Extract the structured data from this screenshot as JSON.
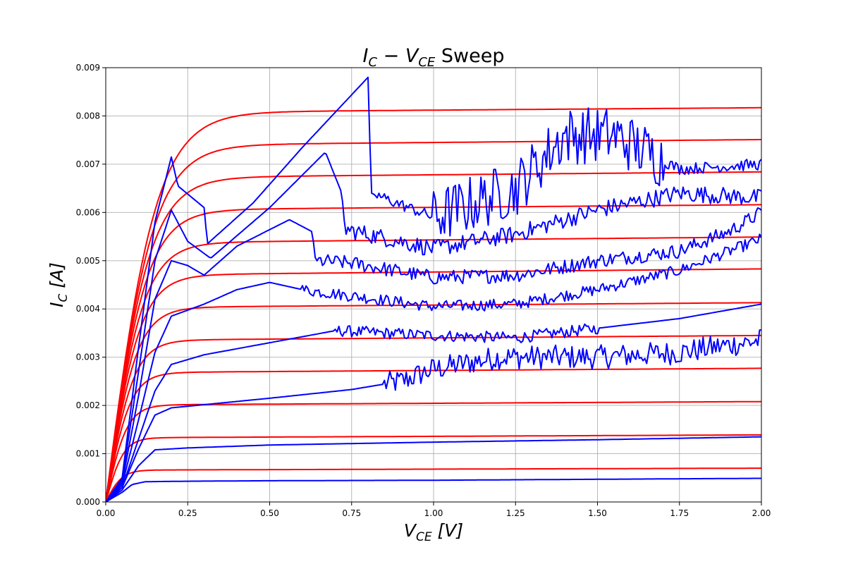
{
  "chart_data": {
    "type": "line",
    "title": {
      "main": "I",
      "main_sub": "C",
      "mid": " − V",
      "mid_sub": "CE",
      "tail": " Sweep"
    },
    "xlabel": {
      "main": "V",
      "sub": "CE",
      "unit": " [V]"
    },
    "ylabel": {
      "main": "I",
      "sub": "C",
      "unit": " [A]"
    },
    "xlim": [
      0,
      2.0
    ],
    "ylim": [
      0,
      0.009
    ],
    "x_ticks": [
      "0.00",
      "0.25",
      "0.50",
      "0.75",
      "1.00",
      "1.25",
      "1.50",
      "1.75",
      "2.00"
    ],
    "y_ticks": [
      "0.000",
      "0.001",
      "0.002",
      "0.003",
      "0.004",
      "0.005",
      "0.006",
      "0.007",
      "0.008",
      "0.009"
    ],
    "grid": true,
    "colors": {
      "model": "#ff0000",
      "measured": "#0000ff"
    },
    "model_curves": {
      "vsat": [
        0.05,
        0.055,
        0.065,
        0.075,
        0.085,
        0.095,
        0.105,
        0.115,
        0.125,
        0.135,
        0.145,
        0.155
      ],
      "isat": [
        0.00066,
        0.00133,
        0.00201,
        0.00268,
        0.00335,
        0.00403,
        0.0047,
        0.00537,
        0.00605,
        0.00672,
        0.00739,
        0.00807
      ],
      "isat_at_2V": [
        0.0007,
        0.00139,
        0.00208,
        0.00277,
        0.00345,
        0.00413,
        0.00483,
        0.00549,
        0.00616,
        0.00684,
        0.00751,
        0.00817
      ]
    },
    "measured_curves": [
      {
        "points": [
          [
            0,
            0
          ],
          [
            0.05,
            0.0002
          ],
          [
            0.08,
            0.00036
          ],
          [
            0.12,
            0.00042
          ],
          [
            0.25,
            0.00043
          ],
          [
            0.5,
            0.00044
          ],
          [
            1.0,
            0.00045
          ],
          [
            1.5,
            0.00047
          ],
          [
            2.0,
            0.00049
          ]
        ]
      },
      {
        "points": [
          [
            0,
            0
          ],
          [
            0.05,
            0.00025
          ],
          [
            0.1,
            0.00075
          ],
          [
            0.15,
            0.00108
          ],
          [
            0.25,
            0.00112
          ],
          [
            0.5,
            0.00118
          ],
          [
            1.0,
            0.00124
          ],
          [
            1.5,
            0.00129
          ],
          [
            2.0,
            0.00135
          ]
        ]
      },
      {
        "points": [
          [
            0,
            0
          ],
          [
            0.05,
            0.0003
          ],
          [
            0.1,
            0.0011
          ],
          [
            0.15,
            0.0018
          ],
          [
            0.2,
            0.00195
          ],
          [
            0.5,
            0.00215
          ],
          [
            0.75,
            0.00233
          ],
          [
            0.9,
            0.0025
          ],
          [
            1.0,
            0.00275
          ],
          [
            1.2,
            0.003
          ],
          [
            1.5,
            0.003
          ],
          [
            1.75,
            0.0031
          ],
          [
            2.0,
            0.00335
          ]
        ],
        "noise": [
          [
            0.85,
            2.0,
            0.00025
          ]
        ]
      },
      {
        "points": [
          [
            0,
            0
          ],
          [
            0.05,
            0.0003
          ],
          [
            0.1,
            0.0013
          ],
          [
            0.15,
            0.0023
          ],
          [
            0.2,
            0.00285
          ],
          [
            0.3,
            0.00305
          ],
          [
            0.5,
            0.0033
          ],
          [
            0.7,
            0.00355
          ],
          [
            1.0,
            0.00345
          ],
          [
            1.25,
            0.0034
          ],
          [
            1.5,
            0.0036
          ],
          [
            1.75,
            0.0038
          ],
          [
            2.0,
            0.0041
          ]
        ],
        "noise": [
          [
            0.7,
            1.5,
            0.00012
          ]
        ]
      },
      {
        "points": [
          [
            0,
            0
          ],
          [
            0.05,
            0.00035
          ],
          [
            0.1,
            0.0017
          ],
          [
            0.15,
            0.0031
          ],
          [
            0.2,
            0.00385
          ],
          [
            0.3,
            0.0041
          ],
          [
            0.4,
            0.0044
          ],
          [
            0.5,
            0.00455
          ],
          [
            0.6,
            0.0044
          ],
          [
            1.0,
            0.00405
          ],
          [
            1.25,
            0.0041
          ],
          [
            1.5,
            0.0044
          ],
          [
            1.75,
            0.0048
          ],
          [
            2.0,
            0.00545
          ]
        ],
        "noise": [
          [
            0.6,
            2.0,
            0.00012
          ]
        ]
      },
      {
        "points": [
          [
            0,
            0
          ],
          [
            0.05,
            0.0004
          ],
          [
            0.1,
            0.0022
          ],
          [
            0.15,
            0.0042
          ],
          [
            0.2,
            0.005
          ],
          [
            0.25,
            0.0049
          ],
          [
            0.3,
            0.0047
          ],
          [
            0.4,
            0.0053
          ],
          [
            0.56,
            0.00585
          ],
          [
            0.63,
            0.0056
          ],
          [
            0.64,
            0.005
          ],
          [
            0.75,
            0.00495
          ],
          [
            1.0,
            0.00465
          ],
          [
            1.25,
            0.0047
          ],
          [
            1.5,
            0.005
          ],
          [
            1.75,
            0.0052
          ],
          [
            1.9,
            0.0056
          ],
          [
            2.0,
            0.006
          ]
        ],
        "noise": [
          [
            0.65,
            2.0,
            0.00015
          ]
        ]
      },
      {
        "points": [
          [
            0,
            0
          ],
          [
            0.05,
            0.00045
          ],
          [
            0.1,
            0.0027
          ],
          [
            0.15,
            0.005
          ],
          [
            0.2,
            0.00605
          ],
          [
            0.25,
            0.0054
          ],
          [
            0.32,
            0.00505
          ],
          [
            0.5,
            0.0061
          ],
          [
            0.67,
            0.00725
          ],
          [
            0.72,
            0.0064
          ],
          [
            0.73,
            0.00565
          ],
          [
            1.0,
            0.00525
          ],
          [
            1.25,
            0.00555
          ],
          [
            1.5,
            0.00605
          ],
          [
            1.75,
            0.0064
          ],
          [
            2.0,
            0.0063
          ]
        ],
        "noise": [
          [
            0.73,
            2.0,
            0.00018
          ]
        ]
      },
      {
        "points": [
          [
            0,
            0
          ],
          [
            0.05,
            0.0005
          ],
          [
            0.1,
            0.0032
          ],
          [
            0.15,
            0.0058
          ],
          [
            0.2,
            0.00715
          ],
          [
            0.22,
            0.00655
          ],
          [
            0.3,
            0.0061
          ],
          [
            0.31,
            0.00535
          ],
          [
            0.45,
            0.0062
          ],
          [
            0.6,
            0.00735
          ],
          [
            0.8,
            0.0088
          ],
          [
            0.81,
            0.0064
          ],
          [
            1.0,
            0.0059
          ],
          [
            1.25,
            0.0065
          ],
          [
            1.4,
            0.0076
          ],
          [
            1.55,
            0.0076
          ],
          [
            1.75,
            0.0069
          ],
          [
            2.0,
            0.007
          ]
        ],
        "noise": [
          [
            0.82,
            1.0,
            0.00012
          ],
          [
            1.0,
            1.7,
            0.0006
          ],
          [
            1.7,
            2.0,
            0.00012
          ]
        ]
      }
    ]
  }
}
